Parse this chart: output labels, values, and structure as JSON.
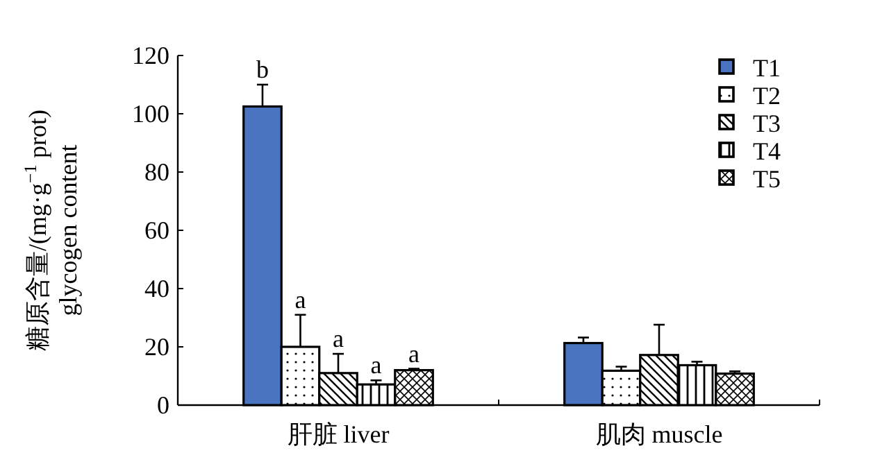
{
  "chart_data": {
    "type": "bar",
    "categories": [
      "肝脏 liver",
      "肌肉 muscle"
    ],
    "ylabel": "糖原含量/(mg·g$^{−1}$ prot)\nglycogen content",
    "ylim": [
      0,
      120
    ],
    "yticks": [
      0,
      20,
      40,
      60,
      80,
      100,
      120
    ],
    "grid": false,
    "legend": "top right",
    "series": [
      {
        "name": "T1",
        "color": "#4a74c0",
        "values": [
          102.5,
          21.3
        ],
        "errors": [
          [
            102.5,
            110
          ],
          [
            21.3,
            23.2
          ]
        ]
      },
      {
        "name": "T2",
        "color": "#000000",
        "values": [
          20,
          11.8
        ],
        "errors": [
          [
            20,
            31
          ],
          [
            11.8,
            13.2
          ]
        ]
      },
      {
        "name": "T3",
        "color": "#000000",
        "values": [
          11,
          17.2
        ],
        "errors": [
          [
            11,
            17.6
          ],
          [
            17.2,
            27.6
          ]
        ]
      },
      {
        "name": "T4",
        "color": "#000000",
        "values": [
          7.1,
          13.7
        ],
        "errors": [
          [
            7.1,
            8.5
          ],
          [
            13.7,
            14.9
          ]
        ]
      },
      {
        "name": "T5",
        "color": "#000000",
        "values": [
          12,
          10.8
        ],
        "errors": [
          [
            12,
            12.5
          ],
          [
            10.8,
            11.6
          ]
        ]
      }
    ],
    "annotations": [
      "b",
      "a",
      "a",
      "a",
      "a"
    ]
  }
}
